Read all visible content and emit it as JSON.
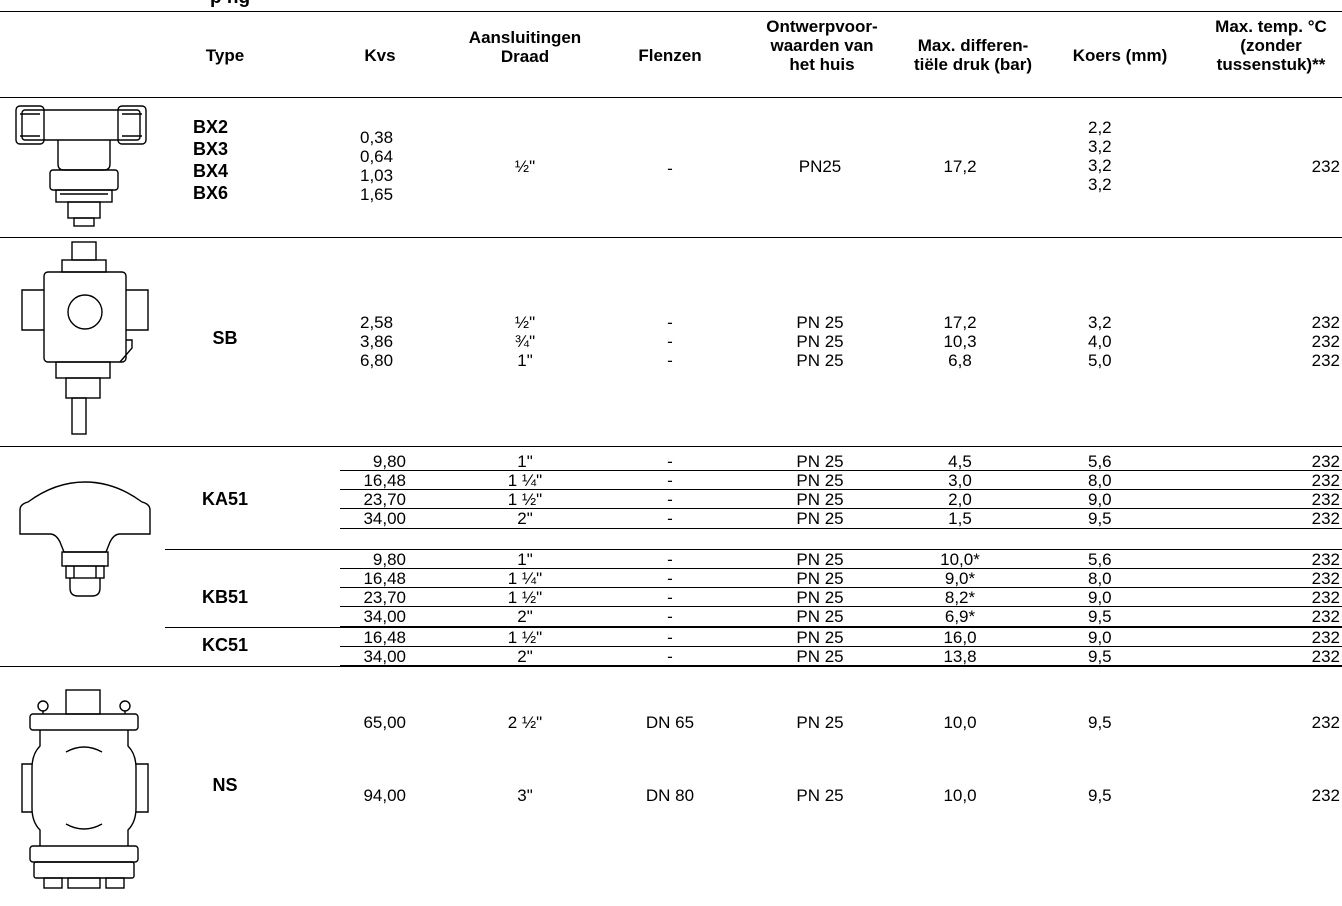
{
  "page": {
    "partial_title": "p ng"
  },
  "headers": {
    "type": "Type",
    "kvs": "Kvs",
    "aansluitingen_l1": "Aansluitingen",
    "aansluitingen_l2": "Draad",
    "flenzen": "Flenzen",
    "ontwerp_l1": "Ontwerpvoor-",
    "ontwerp_l2": "waarden van",
    "ontwerp_l3": "het huis",
    "maxdiff_l1": "Max. differen-",
    "maxdiff_l2": "tiële druk (bar)",
    "koers": "Koers (mm)",
    "maxtemp_l1": "Max. temp. °C",
    "maxtemp_l2": "(zonder",
    "maxtemp_l3": "tussenstuk)**"
  },
  "bx": {
    "types": [
      "BX2",
      "BX3",
      "BX4",
      "BX6"
    ],
    "kvs": [
      "0,38",
      "0,64",
      "1,03",
      "1,65"
    ],
    "draad": "½\"",
    "flenzen": "-",
    "ontwerp": "PN25",
    "maxdiff": "17,2",
    "koers": [
      "2,2",
      "3,2",
      "3,2",
      "3,2"
    ],
    "maxtemp": "232"
  },
  "sb": {
    "type": "SB",
    "kvs": [
      "2,58",
      "3,86",
      "6,80"
    ],
    "draad": [
      "½\"",
      "¾\"",
      "1\""
    ],
    "flenzen": [
      "-",
      "-",
      "-"
    ],
    "ontwerp": [
      "PN 25",
      "PN 25",
      "PN 25"
    ],
    "maxdiff": [
      "17,2",
      "10,3",
      "6,8"
    ],
    "koers": [
      "3,2",
      "4,0",
      "5,0"
    ],
    "maxtemp": [
      "232",
      "232",
      "232"
    ]
  },
  "ka51": {
    "type": "KA51",
    "kvs": [
      "9,80",
      "16,48",
      "23,70",
      "34,00"
    ],
    "draad": [
      "1\"",
      "1 ¼\"",
      "1 ½\"",
      "2\""
    ],
    "flenzen": [
      "-",
      "-",
      "-",
      "-"
    ],
    "ontwerp": [
      "PN 25",
      "PN 25",
      "PN 25",
      "PN 25"
    ],
    "maxdiff": [
      "4,5",
      "3,0",
      "2,0",
      "1,5"
    ],
    "koers": [
      "5,6",
      "8,0",
      "9,0",
      "9,5"
    ],
    "maxtemp": [
      "232",
      "232",
      "232",
      "232"
    ]
  },
  "kb51": {
    "type": "KB51",
    "kvs": [
      "9,80",
      "16,48",
      "23,70",
      "34,00"
    ],
    "draad": [
      "1\"",
      "1 ¼\"",
      "1 ½\"",
      "2\""
    ],
    "flenzen": [
      "-",
      "-",
      "-",
      "-"
    ],
    "ontwerp": [
      "PN 25",
      "PN 25",
      "PN 25",
      "PN 25"
    ],
    "maxdiff": [
      "10,0*",
      "9,0*",
      "8,2*",
      "6,9*"
    ],
    "koers": [
      "5,6",
      "8,0",
      "9,0",
      "9,5"
    ],
    "maxtemp": [
      "232",
      "232",
      "232",
      "232"
    ]
  },
  "kc51": {
    "type": "KC51",
    "kvs": [
      "16,48",
      "34,00"
    ],
    "draad": [
      "1 ½\"",
      "2\""
    ],
    "flenzen": [
      "-",
      "-"
    ],
    "ontwerp": [
      "PN 25",
      "PN 25"
    ],
    "maxdiff": [
      "16,0",
      "13,8"
    ],
    "koers": [
      "9,0",
      "9,5"
    ],
    "maxtemp": [
      "232",
      "232"
    ]
  },
  "ns": {
    "type": "NS",
    "kvs": [
      "65,00",
      "94,00"
    ],
    "draad": [
      "2 ½\"",
      "3\""
    ],
    "flenzen": [
      "DN 65",
      "DN 80"
    ],
    "ontwerp": [
      "PN 25",
      "PN 25"
    ],
    "maxdiff": [
      "10,0",
      "10,0"
    ],
    "koers": [
      "9,5",
      "9,5"
    ],
    "maxtemp": [
      "232",
      "232"
    ]
  }
}
